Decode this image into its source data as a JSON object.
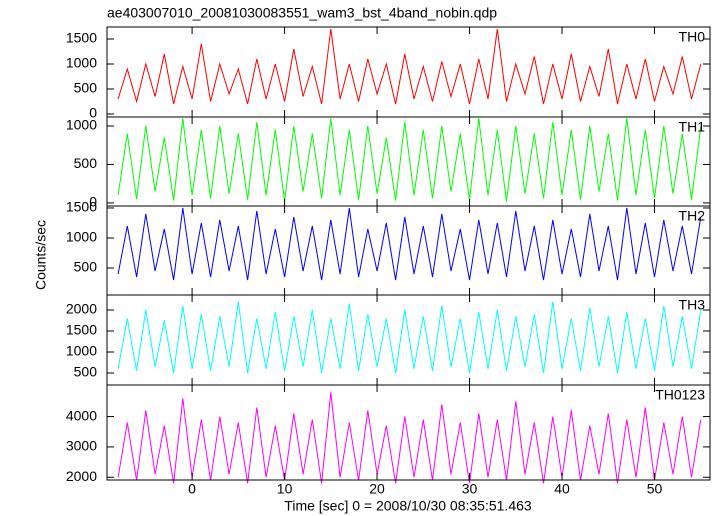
{
  "chart_data": {
    "type": "line",
    "title": "ae403007010_20081030083551_wam3_bst_4band_nobin.qdp",
    "xlabel": "Time [sec] 0 = 2008/10/30 08:35:51.463",
    "ylabel": "Counts/sec",
    "xlim": [
      -9.2,
      56
    ],
    "xticks": [
      0,
      10,
      20,
      30,
      40,
      50
    ],
    "x": [
      -8,
      -7,
      -6,
      -5,
      -4,
      -3,
      -2,
      -1,
      0,
      1,
      2,
      3,
      4,
      5,
      6,
      7,
      8,
      9,
      10,
      11,
      12,
      13,
      14,
      15,
      16,
      17,
      18,
      19,
      20,
      21,
      22,
      23,
      24,
      25,
      26,
      27,
      28,
      29,
      30,
      31,
      32,
      33,
      34,
      35,
      36,
      37,
      38,
      39,
      40,
      41,
      42,
      43,
      44,
      45,
      46,
      47,
      48,
      49,
      50,
      51,
      52,
      53,
      54,
      55
    ],
    "series": [
      {
        "name": "TH0",
        "color": "#ff0000",
        "ylim": [
          -60,
          1740
        ],
        "yticks": [
          0,
          500,
          1000,
          1500
        ],
        "values": [
          300,
          900,
          250,
          1000,
          350,
          1200,
          200,
          950,
          300,
          1400,
          250,
          1000,
          400,
          900,
          200,
          1100,
          300,
          1000,
          250,
          1300,
          350,
          950,
          200,
          1700,
          300,
          1000,
          250,
          1100,
          400,
          1000,
          200,
          1200,
          300,
          950,
          250,
          1050,
          350,
          1000,
          200,
          1100,
          300,
          1700,
          250,
          1000,
          400,
          1150,
          200,
          1000,
          300,
          1200,
          250,
          950,
          350,
          1300,
          200,
          1000,
          300,
          1100,
          250,
          950,
          400,
          1150,
          300,
          1000
        ]
      },
      {
        "name": "TH1",
        "color": "#00ff00",
        "ylim": [
          -40,
          1117
        ],
        "yticks": [
          0,
          500,
          1000
        ],
        "values": [
          100,
          900,
          50,
          1000,
          150,
          850,
          30,
          1100,
          100,
          950,
          60,
          1000,
          120,
          900,
          40,
          1050,
          100,
          950,
          20,
          1000,
          150,
          900,
          60,
          1100,
          100,
          950,
          40,
          1000,
          120,
          850,
          30,
          1050,
          100,
          950,
          60,
          1000,
          150,
          900,
          40,
          1100,
          100,
          950,
          20,
          1000,
          120,
          900,
          60,
          1050,
          100,
          950,
          40,
          1000,
          150,
          900,
          30,
          1100,
          100,
          950,
          60,
          1000,
          120,
          900,
          40,
          1000
        ]
      },
      {
        "name": "TH2",
        "color": "#0000ff",
        "ylim": [
          50,
          1533
        ],
        "yticks": [
          500,
          1000,
          1500
        ],
        "values": [
          400,
          1200,
          350,
          1400,
          450,
          1150,
          300,
          1500,
          400,
          1250,
          350,
          1300,
          450,
          1200,
          300,
          1450,
          400,
          1150,
          350,
          1350,
          450,
          1200,
          300,
          1300,
          400,
          1500,
          350,
          1150,
          450,
          1250,
          300,
          1350,
          400,
          1200,
          350,
          1400,
          450,
          1150,
          300,
          1300,
          400,
          1250,
          350,
          1450,
          450,
          1200,
          300,
          1300,
          400,
          1150,
          350,
          1400,
          450,
          1200,
          300,
          1500,
          400,
          1250,
          350,
          1300,
          450,
          1200,
          400,
          1350
        ]
      },
      {
        "name": "TH3",
        "color": "#00ffff",
        "ylim": [
          214,
          2357
        ],
        "yticks": [
          500,
          1000,
          1500,
          2000
        ],
        "values": [
          600,
          1800,
          550,
          2000,
          650,
          1750,
          500,
          2100,
          600,
          1900,
          550,
          1850,
          650,
          2200,
          500,
          1800,
          600,
          1950,
          550,
          1850,
          650,
          2000,
          500,
          1800,
          600,
          2150,
          550,
          1900,
          650,
          1800,
          500,
          2000,
          600,
          1850,
          550,
          2100,
          650,
          1800,
          500,
          1950,
          600,
          2000,
          550,
          1850,
          650,
          1900,
          500,
          2200,
          600,
          1800,
          550,
          2050,
          650,
          1850,
          500,
          1950,
          600,
          1800,
          550,
          2100,
          650,
          1850,
          600,
          2000
        ]
      },
      {
        "name": "TH0123",
        "color": "#ff00ff",
        "ylim": [
          1910,
          5040
        ],
        "yticks": [
          2000,
          3000,
          4000
        ],
        "values": [
          2000,
          3800,
          1900,
          4200,
          2100,
          3700,
          1800,
          4600,
          2000,
          3900,
          1900,
          4000,
          2100,
          3800,
          1800,
          4300,
          2000,
          3700,
          1900,
          4100,
          2100,
          3900,
          1800,
          4800,
          2000,
          3800,
          1900,
          4200,
          2100,
          3700,
          1800,
          4000,
          2000,
          3900,
          1900,
          4400,
          2100,
          3800,
          1800,
          4100,
          2000,
          3900,
          1900,
          4500,
          2100,
          3800,
          1800,
          4000,
          2000,
          4200,
          1900,
          3700,
          2100,
          4100,
          1800,
          3900,
          2000,
          4300,
          1900,
          3800,
          2100,
          4000,
          2000,
          3900
        ]
      }
    ]
  }
}
